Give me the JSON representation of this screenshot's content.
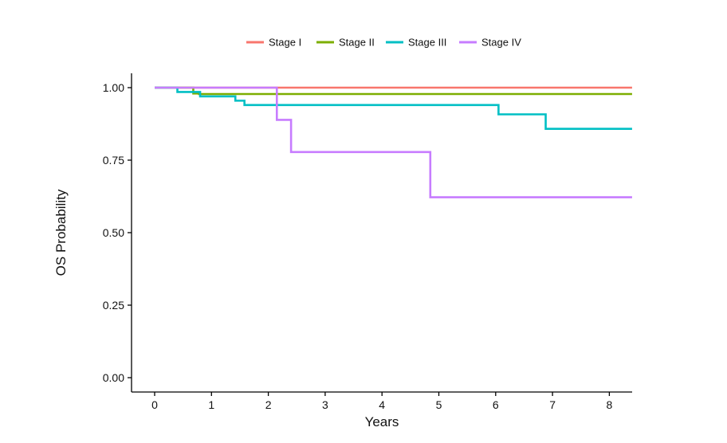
{
  "chart_data": {
    "type": "line",
    "subtype": "kaplan-meier-step",
    "title": "",
    "xlabel": "Years",
    "ylabel": "OS Probability",
    "xlim": [
      -0.4,
      8.4
    ],
    "ylim": [
      0,
      1
    ],
    "x_ticks": [
      0,
      1,
      2,
      3,
      4,
      5,
      6,
      7,
      8
    ],
    "y_ticks": [
      0.0,
      0.25,
      0.5,
      0.75,
      1.0
    ],
    "y_tick_labels": [
      "0.00",
      "0.25",
      "0.50",
      "0.75",
      "1.00"
    ],
    "grid": false,
    "legend_position": "top",
    "series": [
      {
        "name": "Stage I",
        "color": "#F8766D",
        "x": [
          0,
          8.4
        ],
        "y": [
          1.0,
          1.0
        ]
      },
      {
        "name": "Stage II",
        "color": "#7CAE00",
        "x": [
          0,
          0.68,
          0.78,
          8.4
        ],
        "y": [
          1.0,
          0.98,
          0.978,
          0.978
        ]
      },
      {
        "name": "Stage III",
        "color": "#00BFC4",
        "x": [
          0,
          0.4,
          0.8,
          1.42,
          1.58,
          6.05,
          6.88,
          8.4
        ],
        "y": [
          1.0,
          0.985,
          0.97,
          0.955,
          0.94,
          0.908,
          0.858,
          0.858
        ]
      },
      {
        "name": "Stage IV",
        "color": "#C77CFF",
        "x": [
          0,
          2.15,
          2.4,
          4.85,
          8.4
        ],
        "y": [
          1.0,
          0.889,
          0.778,
          0.622,
          0.622
        ]
      }
    ]
  }
}
